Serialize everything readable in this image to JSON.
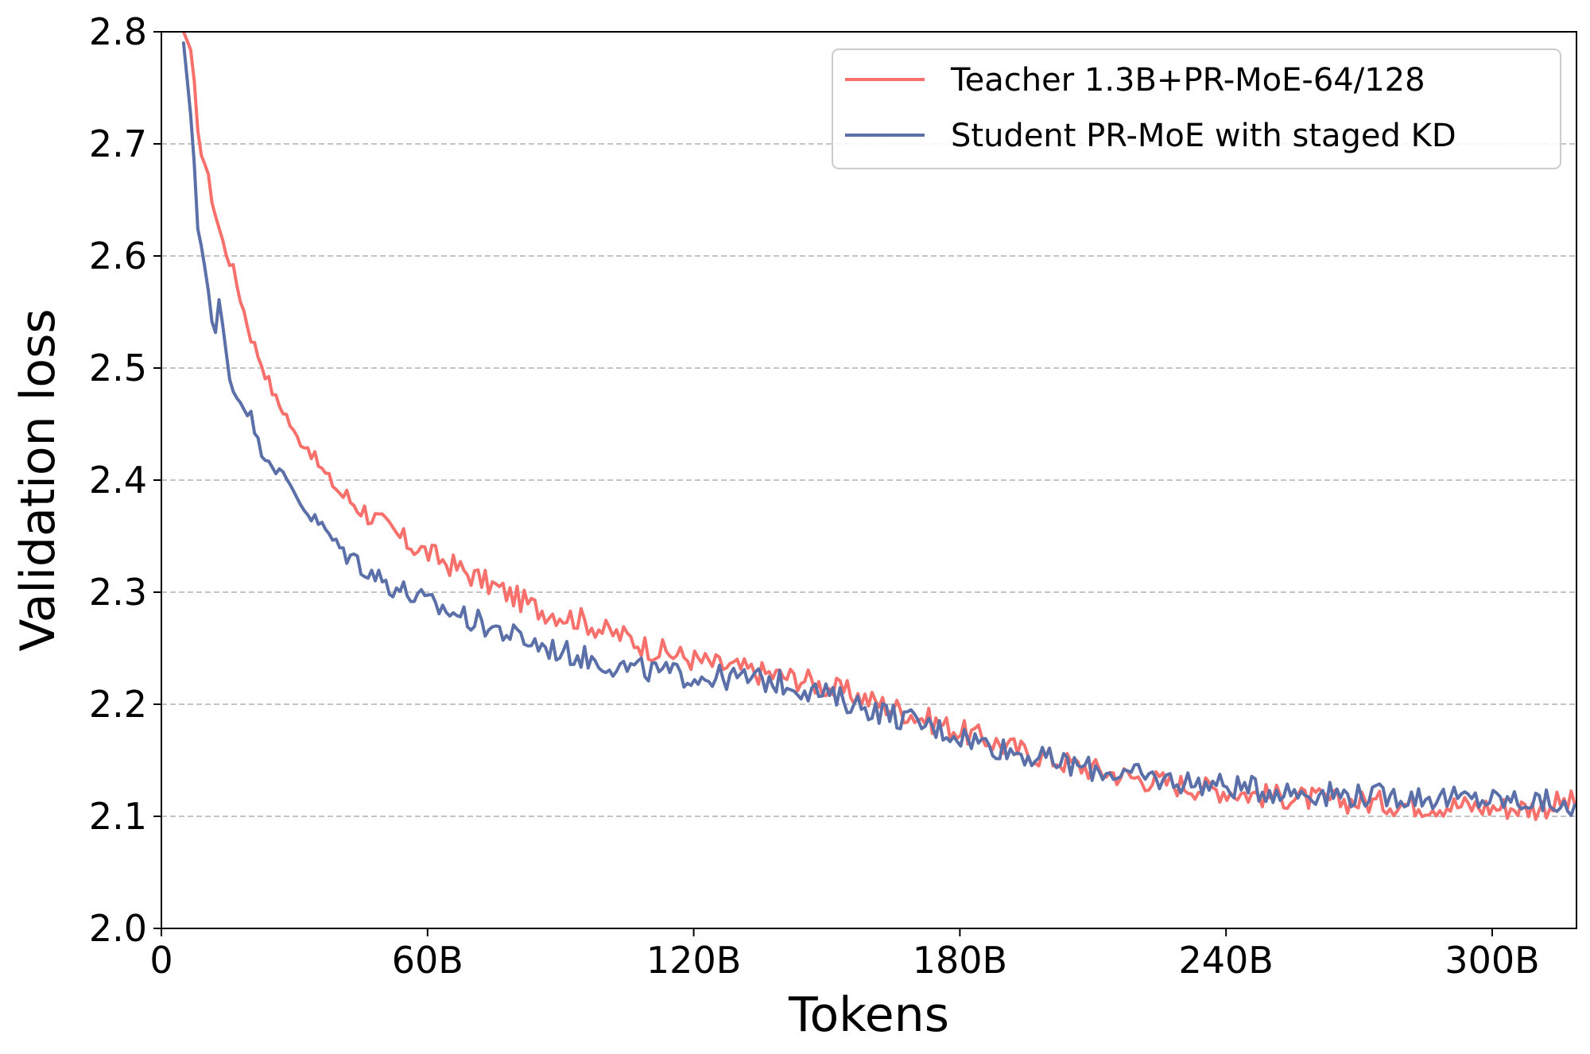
{
  "chart_data": {
    "type": "line",
    "xlabel": "Tokens",
    "ylabel": "Validation loss",
    "xlim": [
      0,
      319
    ],
    "ylim": [
      2.0,
      2.8
    ],
    "x_ticks": [
      0,
      60,
      120,
      180,
      240,
      300
    ],
    "x_tick_labels": [
      "0",
      "60B",
      "120B",
      "180B",
      "240B",
      "300B"
    ],
    "y_ticks": [
      2.0,
      2.1,
      2.2,
      2.3,
      2.4,
      2.5,
      2.6,
      2.7,
      2.8
    ],
    "y_tick_labels": [
      "2.0",
      "2.1",
      "2.2",
      "2.3",
      "2.4",
      "2.5",
      "2.6",
      "2.7",
      "2.8"
    ],
    "grid": "horizontal-dashed",
    "legend_position": "top-right",
    "series": [
      {
        "name": "Teacher 1.3B+PR-MoE-64/128",
        "color": "#f8706b",
        "x": [
          5,
          7,
          8,
          10,
          12,
          14,
          16,
          18,
          20,
          22,
          24,
          26,
          28,
          30,
          33,
          36,
          40,
          45,
          50,
          55,
          60,
          65,
          70,
          75,
          80,
          85,
          90,
          95,
          100,
          105,
          110,
          115,
          120,
          125,
          130,
          135,
          140,
          145,
          150,
          155,
          160,
          165,
          170,
          175,
          180,
          185,
          190,
          195,
          200,
          205,
          210,
          215,
          220,
          225,
          230,
          235,
          240,
          245,
          250,
          255,
          260,
          265,
          270,
          275,
          280,
          285,
          290,
          295,
          300,
          305,
          310,
          315,
          319
        ],
        "y": [
          2.8,
          2.78,
          2.71,
          2.68,
          2.64,
          2.61,
          2.59,
          2.56,
          2.53,
          2.51,
          2.49,
          2.47,
          2.46,
          2.44,
          2.43,
          2.41,
          2.39,
          2.375,
          2.36,
          2.345,
          2.335,
          2.325,
          2.315,
          2.305,
          2.295,
          2.285,
          2.28,
          2.275,
          2.265,
          2.26,
          2.25,
          2.245,
          2.24,
          2.235,
          2.232,
          2.228,
          2.225,
          2.222,
          2.215,
          2.21,
          2.203,
          2.197,
          2.19,
          2.183,
          2.176,
          2.17,
          2.163,
          2.157,
          2.152,
          2.147,
          2.142,
          2.138,
          2.134,
          2.131,
          2.128,
          2.125,
          2.123,
          2.12,
          2.118,
          2.117,
          2.115,
          2.114,
          2.113,
          2.112,
          2.111,
          2.11,
          2.11,
          2.109,
          2.108,
          2.108,
          2.107,
          2.112,
          2.112
        ]
      },
      {
        "name": "Student PR-MoE with staged KD",
        "color": "#5b6fa8",
        "x": [
          5,
          7,
          8,
          10,
          12,
          13,
          14,
          16,
          18,
          20,
          22,
          24,
          26,
          28,
          30,
          33,
          36,
          40,
          45,
          50,
          55,
          60,
          65,
          70,
          75,
          80,
          85,
          90,
          95,
          100,
          105,
          110,
          115,
          120,
          125,
          130,
          135,
          140,
          145,
          150,
          155,
          160,
          165,
          170,
          175,
          180,
          185,
          190,
          195,
          200,
          205,
          210,
          215,
          220,
          225,
          230,
          235,
          240,
          245,
          250,
          255,
          260,
          265,
          270,
          275,
          280,
          285,
          290,
          295,
          300,
          305,
          310,
          315,
          317,
          319
        ],
        "y": [
          2.79,
          2.71,
          2.63,
          2.59,
          2.52,
          2.56,
          2.53,
          2.48,
          2.47,
          2.46,
          2.43,
          2.42,
          2.41,
          2.4,
          2.39,
          2.37,
          2.36,
          2.34,
          2.325,
          2.31,
          2.3,
          2.29,
          2.283,
          2.275,
          2.268,
          2.26,
          2.253,
          2.247,
          2.242,
          2.237,
          2.232,
          2.23,
          2.227,
          2.225,
          2.224,
          2.223,
          2.222,
          2.219,
          2.214,
          2.208,
          2.202,
          2.196,
          2.19,
          2.184,
          2.178,
          2.172,
          2.166,
          2.16,
          2.155,
          2.15,
          2.146,
          2.142,
          2.139,
          2.136,
          2.133,
          2.131,
          2.129,
          2.127,
          2.125,
          2.123,
          2.122,
          2.121,
          2.12,
          2.119,
          2.118,
          2.118,
          2.117,
          2.116,
          2.115,
          2.115,
          2.114,
          2.113,
          2.112,
          2.1,
          2.11
        ]
      }
    ]
  }
}
